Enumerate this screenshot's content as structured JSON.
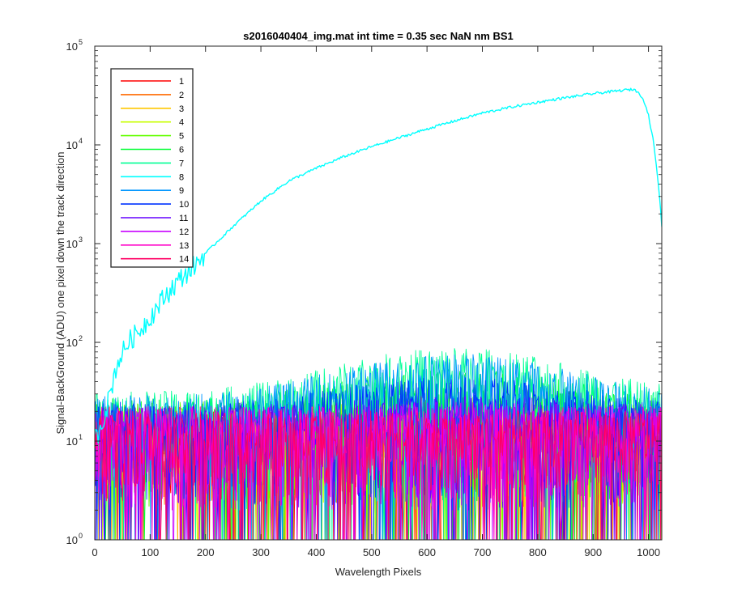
{
  "chart_data": {
    "type": "line",
    "title": "s2016040404_img.mat int time = 0.35 sec  NaN nm BS1",
    "xlabel": "Wavelength Pixels",
    "ylabel": "Signal-BackGround (ADU) one pixel down the track direction",
    "xlim": [
      0,
      1024
    ],
    "ylim": [
      1,
      100000
    ],
    "yscale": "log",
    "xticks": [
      "0",
      "100",
      "200",
      "300",
      "400",
      "500",
      "600",
      "700",
      "800",
      "900",
      "1000"
    ],
    "yticks": [
      {
        "base": "10",
        "exp": "0"
      },
      {
        "base": "10",
        "exp": "1"
      },
      {
        "base": "10",
        "exp": "2"
      },
      {
        "base": "10",
        "exp": "3"
      },
      {
        "base": "10",
        "exp": "4"
      },
      {
        "base": "10",
        "exp": "5"
      }
    ],
    "legend_position": "top-left",
    "grid": false,
    "series": [
      {
        "name": "1",
        "color": "#ff0000",
        "kind": "noise",
        "level": 9,
        "bump": 1
      },
      {
        "name": "2",
        "color": "#ff6a00",
        "kind": "noise",
        "level": 10,
        "bump": 1
      },
      {
        "name": "3",
        "color": "#ffc800",
        "kind": "noise",
        "level": 10,
        "bump": 1.1
      },
      {
        "name": "4",
        "color": "#c8ff00",
        "kind": "noise",
        "level": 10,
        "bump": 1.2
      },
      {
        "name": "5",
        "color": "#64ff00",
        "kind": "noise",
        "level": 11,
        "bump": 1.5
      },
      {
        "name": "6",
        "color": "#00ff32",
        "kind": "noise",
        "level": 12,
        "bump": 2
      },
      {
        "name": "7",
        "color": "#00ff96",
        "kind": "noise",
        "level": 14,
        "bump": 2.8
      },
      {
        "name": "8",
        "color": "#00ffff",
        "kind": "signal",
        "x": [
          0,
          20,
          40,
          60,
          80,
          100,
          120,
          140,
          160,
          180,
          200,
          250,
          300,
          350,
          400,
          450,
          500,
          550,
          600,
          650,
          700,
          750,
          800,
          850,
          900,
          940,
          960,
          975,
          990,
          1000,
          1010,
          1020,
          1024
        ],
        "y": [
          10,
          20,
          60,
          100,
          130,
          180,
          260,
          360,
          470,
          600,
          800,
          1500,
          2700,
          4300,
          5800,
          7600,
          9600,
          11800,
          14500,
          17500,
          21000,
          24000,
          27000,
          30000,
          33000,
          35000,
          36000,
          36500,
          30000,
          20000,
          10000,
          3000,
          1500
        ]
      },
      {
        "name": "9",
        "color": "#0096ff",
        "kind": "noise",
        "level": 13,
        "bump": 2.6
      },
      {
        "name": "10",
        "color": "#0032ff",
        "kind": "noise",
        "level": 11,
        "bump": 1.8
      },
      {
        "name": "11",
        "color": "#6400ff",
        "kind": "noise",
        "level": 10,
        "bump": 1.3
      },
      {
        "name": "12",
        "color": "#c800ff",
        "kind": "noise",
        "level": 10,
        "bump": 1.1
      },
      {
        "name": "13",
        "color": "#ff00c8",
        "kind": "noise",
        "level": 10,
        "bump": 1
      },
      {
        "name": "14",
        "color": "#ff0064",
        "kind": "noise",
        "level": 9,
        "bump": 1
      }
    ]
  }
}
